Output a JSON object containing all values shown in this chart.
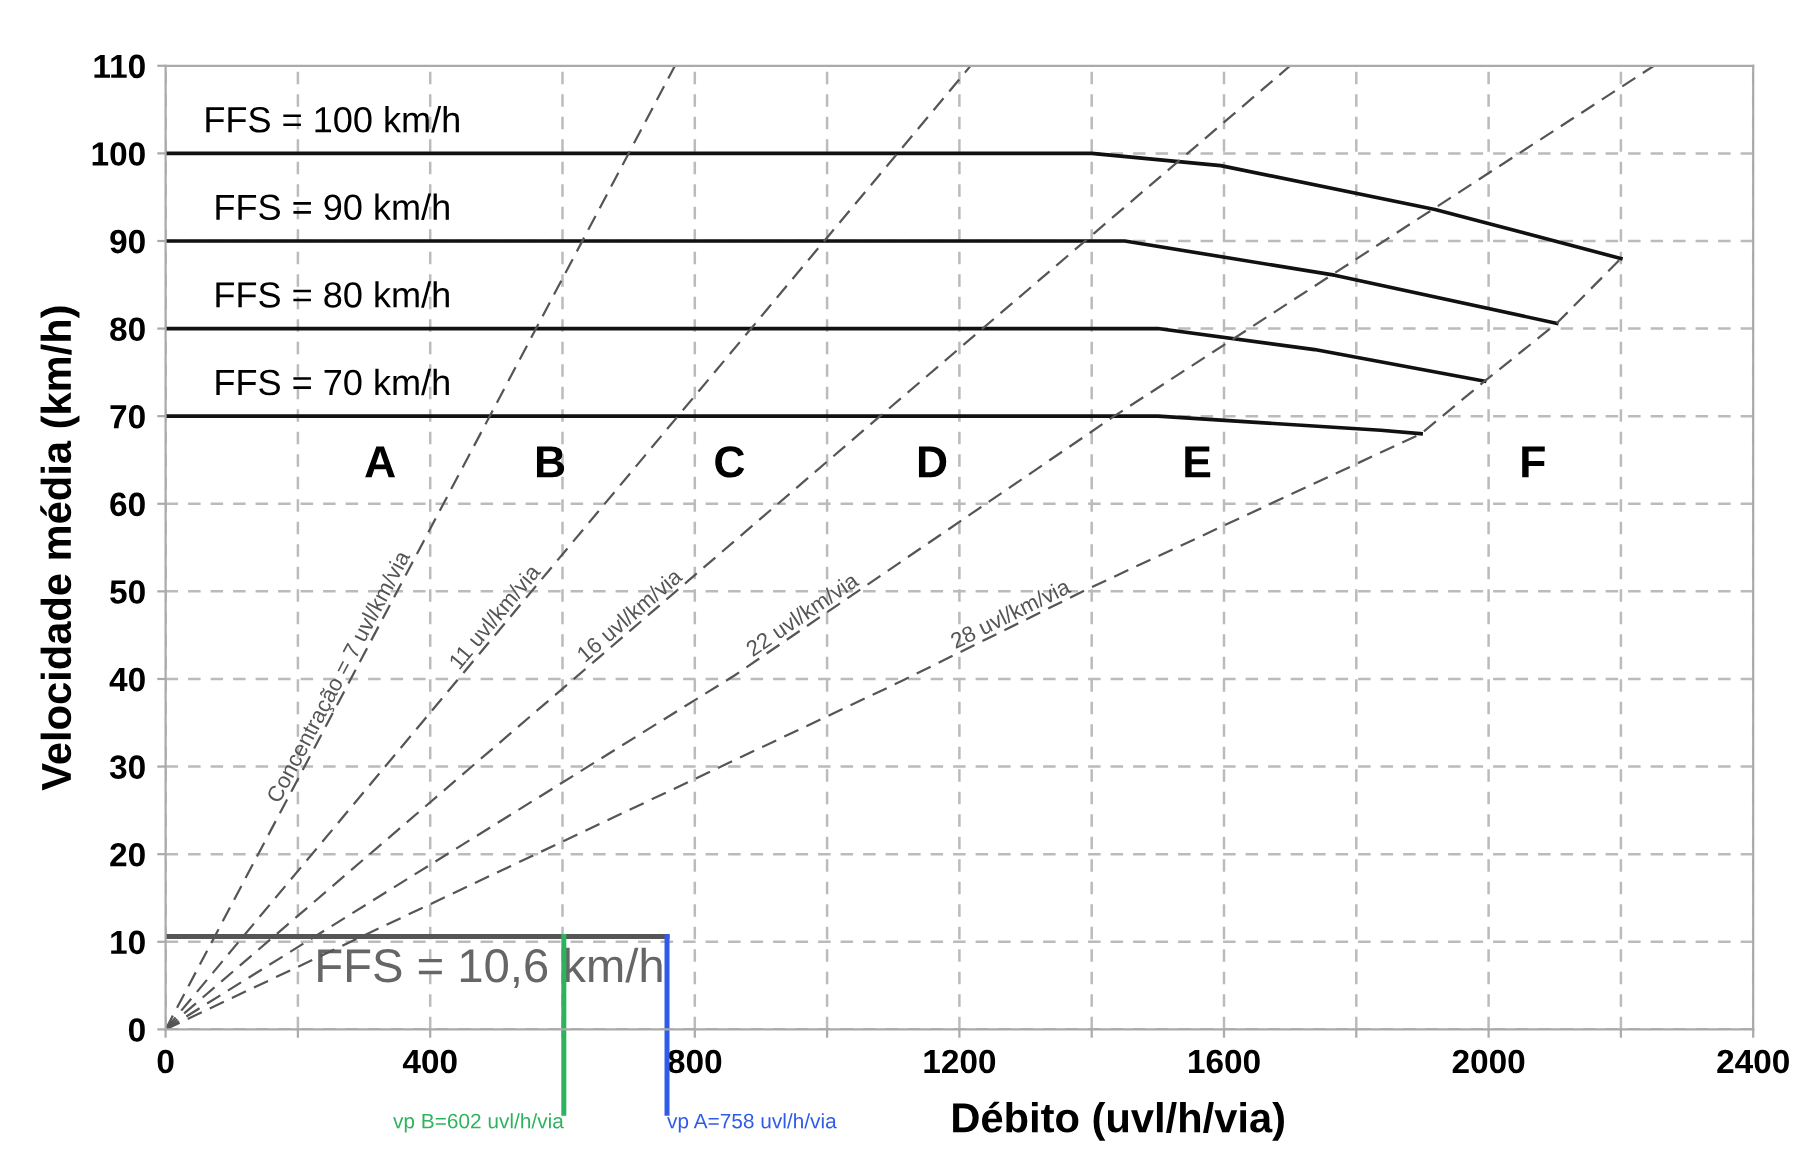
{
  "chart_data": {
    "type": "line",
    "xlabel": "Débito (uvl/h/via)",
    "ylabel": "Velocidade média (km/h)",
    "xlim": [
      0,
      2400
    ],
    "ylim": [
      0,
      110
    ],
    "xticks": [
      0,
      {
        "value": 200,
        "label": null
      },
      400,
      {
        "value": 600,
        "label": null
      },
      800,
      {
        "value": 1000,
        "label": null
      },
      1200,
      {
        "value": 1400,
        "label": null
      },
      1600,
      {
        "value": 1800,
        "label": null
      },
      2000,
      {
        "value": 2200,
        "label": null
      },
      2400
    ],
    "yticks": [
      0,
      10,
      20,
      30,
      40,
      50,
      60,
      70,
      80,
      90,
      100,
      110
    ],
    "grid": true,
    "series": [
      {
        "name": "FFS = 100 km/h",
        "color": "#111111",
        "line_style": "solid",
        "x": [
          0,
          1400,
          1595,
          1919,
          2200
        ],
        "values": [
          100,
          100,
          98.6,
          93.6,
          88
        ]
      },
      {
        "name": "FFS = 90 km/h",
        "color": "#111111",
        "line_style": "solid",
        "x": [
          0,
          1450,
          1767,
          2103
        ],
        "values": [
          90,
          90,
          86.1,
          80.6
        ]
      },
      {
        "name": "FFS = 80 km/h",
        "color": "#111111",
        "line_style": "solid",
        "x": [
          0,
          1500,
          1737,
          1994
        ],
        "values": [
          80,
          80,
          77.6,
          74
        ]
      },
      {
        "name": "FFS = 70 km/h",
        "color": "#111111",
        "line_style": "solid",
        "x": [
          0,
          1500,
          1837,
          1898
        ],
        "values": [
          70,
          70,
          68.4,
          68
        ]
      },
      {
        "name": "FFS = 10,6 km/h",
        "color": "#555555",
        "line_style": "solid",
        "x": [
          0,
          758
        ],
        "values": [
          10.6,
          10.6
        ]
      },
      {
        "name": "Concentração = 7 uvl/km/via",
        "color": "#555555",
        "line_style": "dashed",
        "x": [
          0,
          770
        ],
        "values": [
          0,
          110
        ]
      },
      {
        "name": "11 uvl/km/via",
        "color": "#555555",
        "line_style": "dashed",
        "x": [
          0,
          1217
        ],
        "values": [
          0,
          110
        ]
      },
      {
        "name": "16 uvl/km/via",
        "color": "#555555",
        "line_style": "dashed",
        "x": [
          0,
          1080,
          1700
        ],
        "values": [
          0,
          70,
          110
        ]
      },
      {
        "name": "22 uvl/km/via",
        "color": "#555555",
        "line_style": "dashed",
        "x": [
          0,
          860,
          1434,
          2250
        ],
        "values": [
          0,
          40.4,
          70,
          110
        ]
      },
      {
        "name": "28 uvl/km/via",
        "color": "#555555",
        "line_style": "dashed",
        "x": [
          0,
          1111,
          1392,
          1898,
          1994,
          2103,
          2200
        ],
        "values": [
          0,
          39.7,
          50.2,
          68,
          74,
          80.6,
          88
        ]
      }
    ],
    "ref_lines": [
      {
        "axis": "x",
        "value": 602,
        "label": "vp B=602 uvl/h/via",
        "color": "#2db35d"
      },
      {
        "axis": "x",
        "value": 758,
        "label": "vp A=758 uvl/h/via",
        "color": "#2f5be8"
      }
    ],
    "annotations": [
      "A",
      "B",
      "C",
      "D",
      "E",
      "F"
    ]
  }
}
